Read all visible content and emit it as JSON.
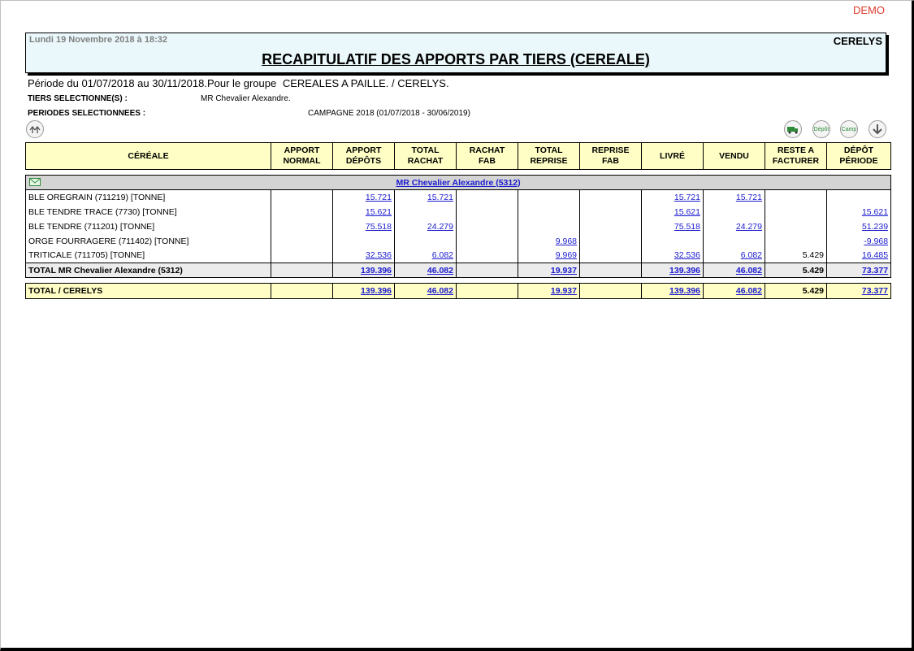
{
  "watermark": "DEMO",
  "header": {
    "date": "Lundi 19 Novembre 2018 à 18:32",
    "brand": "CERELYS",
    "title": "RECAPITULATIF DES APPORTS PAR TIERS (CEREALE)"
  },
  "period_line": "Période du 01/07/2018 au 30/11/2018.Pour le groupe",
  "group_name": "CEREALES A PAILLE. / CERELYS.",
  "tiers_label": "TIERS SELECTIONNE(S) :",
  "tiers_value": "MR Chevalier Alexandre.",
  "periodes_label": "PERIODES SELECTIONNEES :",
  "periodes_value": "CAMPAGNE 2018 (01/07/2018 - 30/06/2019)",
  "toolbar": {
    "depot_label": "Dépôt",
    "camp_label": "Camp",
    "icon_colors": {
      "green": "#2e8b3a",
      "grey": "#555555"
    }
  },
  "columns": [
    [
      "CÉRÉALE"
    ],
    [
      "APPORT",
      "NORMAL"
    ],
    [
      "APPORT",
      "DÉPÔTS"
    ],
    [
      "TOTAL",
      "RACHAT"
    ],
    [
      "RACHAT",
      "FAB"
    ],
    [
      "TOTAL",
      "REPRISE"
    ],
    [
      "REPRISE FAB"
    ],
    [
      "LIVRÉ"
    ],
    [
      "VENDU"
    ],
    [
      "RESTE A",
      "FACTURER"
    ],
    [
      "DÉPÔT",
      "PÉRIODE"
    ]
  ],
  "group_header": "MR Chevalier Alexandre (5312)",
  "rows": [
    [
      "BLE OREGRAIN (711219) [TONNE]",
      "",
      "15.721",
      "15.721",
      "",
      "",
      "",
      "15.721",
      "15.721",
      "",
      ""
    ],
    [
      "BLE TENDRE TRACE (7730) [TONNE]",
      "",
      "15.621",
      "",
      "",
      "",
      "",
      "15.621",
      "",
      "",
      "15.621"
    ],
    [
      "BLE TENDRE (711201) [TONNE]",
      "",
      "75.518",
      "24.279",
      "",
      "",
      "",
      "75.518",
      "24.279",
      "",
      "51.239"
    ],
    [
      "ORGE FOURRAGERE (711402) [TONNE]",
      "",
      "",
      "",
      "",
      "9.968",
      "",
      "",
      "",
      "",
      "-9.968"
    ],
    [
      "TRITICALE (711705) [TONNE]",
      "",
      "32.536",
      "6.082",
      "",
      "9.969",
      "",
      "32.536",
      "6.082",
      "5.429",
      "16.485"
    ]
  ],
  "subtotal": [
    "TOTAL MR Chevalier Alexandre (5312)",
    "",
    "139.396",
    "46.082",
    "",
    "19.937",
    "",
    "139.396",
    "46.082",
    "5.429",
    "73.377"
  ],
  "grand_total": [
    "TOTAL / CERELYS",
    "",
    "139.396",
    "46.082",
    "",
    "19.937",
    "",
    "139.396",
    "46.082",
    "5.429",
    "73.377"
  ],
  "colors": {
    "header_yellow": "#ffffc5",
    "link_blue": "#1a1acf",
    "demo_red": "#e03a2c",
    "banner_bg": "#eaf8fb"
  }
}
